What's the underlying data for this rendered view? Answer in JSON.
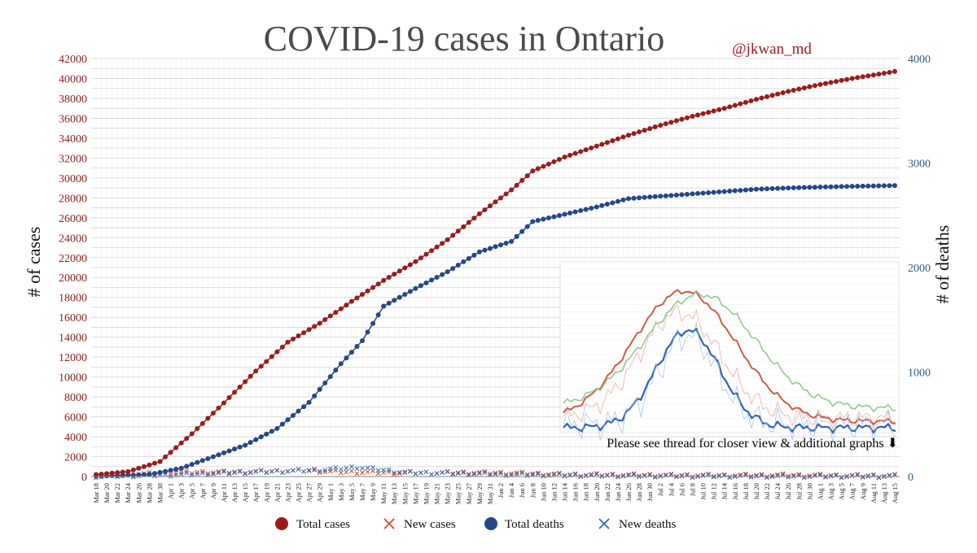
{
  "chart_data": {
    "type": "scatter",
    "title": "COVID-19 cases in Ontario",
    "annotation_handle": "@jkwan_md",
    "note": "Please see thread for closer view & additional graphs ⬇",
    "ylabel_left": "# of cases",
    "ylabel_right": "# of deaths",
    "ylim_left": [
      0,
      42000
    ],
    "ylim_right": [
      0,
      4000
    ],
    "yticks_left": [
      0,
      2000,
      4000,
      6000,
      8000,
      10000,
      12000,
      14000,
      16000,
      18000,
      20000,
      22000,
      24000,
      26000,
      28000,
      30000,
      32000,
      34000,
      36000,
      38000,
      40000,
      42000
    ],
    "yticks_right": [
      0,
      1000,
      2000,
      3000,
      4000
    ],
    "grid": true,
    "legend_position": "bottom",
    "x_start": "2020-03-18",
    "x_end": "2020-08-15",
    "x_tick_labels": [
      "Mar 18",
      "Mar 20",
      "Mar 22",
      "Mar 24",
      "Mar 26",
      "Mar 28",
      "Mar 30",
      "Apr 1",
      "Apr 3",
      "Apr 5",
      "Apr 7",
      "Apr 9",
      "Apr 11",
      "Apr 13",
      "Apr 15",
      "Apr 17",
      "Apr 19",
      "Apr 21",
      "Apr 23",
      "Apr 25",
      "Apr 27",
      "Apr 29",
      "May 1",
      "May 3",
      "May 5",
      "May 7",
      "May 9",
      "May 11",
      "May 13",
      "May 15",
      "May 17",
      "May 19",
      "May 21",
      "May 23",
      "May 25",
      "May 27",
      "May 29",
      "May 31",
      "Jun 2",
      "Jun 4",
      "Jun 6",
      "Jun 8",
      "Jun 10",
      "Jun 12",
      "Jun 14",
      "Jun 16",
      "Jun 18",
      "Jun 20",
      "Jun 22",
      "Jun 24",
      "Jun 26",
      "Jun 28",
      "Jun 30",
      "Jul 2",
      "Jul 4",
      "Jul 6",
      "Jul 8",
      "Jul 10",
      "Jul 12",
      "Jul 14",
      "Jul 16",
      "Jul 18",
      "Jul 20",
      "Jul 22",
      "Jul 24",
      "Jul 26",
      "Jul 28",
      "Jul 30",
      "Aug 1",
      "Aug 3",
      "Aug 5",
      "Aug 7",
      "Aug 9",
      "Aug 11",
      "Aug 13",
      "Aug 15"
    ],
    "series": [
      {
        "name": "Total cases",
        "axis": "left",
        "color": "#9b1b1b",
        "marker": "circle",
        "anchors": [
          [
            "2020-03-18",
            200
          ],
          [
            "2020-03-24",
            500
          ],
          [
            "2020-03-30",
            1500
          ],
          [
            "2020-04-05",
            4300
          ],
          [
            "2020-04-11",
            7400
          ],
          [
            "2020-04-17",
            10600
          ],
          [
            "2020-04-23",
            13500
          ],
          [
            "2020-04-29",
            15400
          ],
          [
            "2020-05-05",
            17600
          ],
          [
            "2020-05-11",
            19700
          ],
          [
            "2020-05-17",
            21600
          ],
          [
            "2020-05-23",
            23800
          ],
          [
            "2020-05-29",
            26400
          ],
          [
            "2020-06-04",
            28800
          ],
          [
            "2020-06-08",
            30700
          ],
          [
            "2020-06-14",
            32100
          ],
          [
            "2020-06-20",
            33200
          ],
          [
            "2020-06-26",
            34300
          ],
          [
            "2020-07-02",
            35300
          ],
          [
            "2020-07-08",
            36200
          ],
          [
            "2020-07-14",
            37000
          ],
          [
            "2020-07-20",
            37900
          ],
          [
            "2020-07-26",
            38700
          ],
          [
            "2020-08-01",
            39400
          ],
          [
            "2020-08-07",
            40000
          ],
          [
            "2020-08-15",
            40700
          ]
        ]
      },
      {
        "name": "New cases",
        "axis": "left",
        "color": "#d9452b",
        "marker": "x",
        "anchors": [
          [
            "2020-03-18",
            40
          ],
          [
            "2020-03-30",
            350
          ],
          [
            "2020-04-05",
            420
          ],
          [
            "2020-04-17",
            500
          ],
          [
            "2020-04-25",
            600
          ],
          [
            "2020-05-01",
            500
          ],
          [
            "2020-05-15",
            350
          ],
          [
            "2020-05-25",
            400
          ],
          [
            "2020-06-04",
            350
          ],
          [
            "2020-06-15",
            200
          ],
          [
            "2020-06-25",
            170
          ],
          [
            "2020-07-05",
            130
          ],
          [
            "2020-07-15",
            120
          ],
          [
            "2020-07-25",
            150
          ],
          [
            "2020-08-05",
            100
          ],
          [
            "2020-08-15",
            90
          ]
        ]
      },
      {
        "name": "Total deaths",
        "axis": "right",
        "color": "#24468a",
        "marker": "circle",
        "anchors": [
          [
            "2020-03-18",
            3
          ],
          [
            "2020-03-28",
            20
          ],
          [
            "2020-04-03",
            80
          ],
          [
            "2020-04-09",
            190
          ],
          [
            "2020-04-15",
            300
          ],
          [
            "2020-04-21",
            460
          ],
          [
            "2020-04-27",
            710
          ],
          [
            "2020-05-03",
            1080
          ],
          [
            "2020-05-07",
            1300
          ],
          [
            "2020-05-11",
            1630
          ],
          [
            "2020-05-17",
            1800
          ],
          [
            "2020-05-23",
            1960
          ],
          [
            "2020-05-29",
            2150
          ],
          [
            "2020-06-04",
            2250
          ],
          [
            "2020-06-08",
            2440
          ],
          [
            "2020-06-14",
            2510
          ],
          [
            "2020-06-20",
            2580
          ],
          [
            "2020-06-26",
            2660
          ],
          [
            "2020-07-04",
            2690
          ],
          [
            "2020-07-12",
            2720
          ],
          [
            "2020-07-20",
            2750
          ],
          [
            "2020-07-28",
            2765
          ],
          [
            "2020-08-05",
            2775
          ],
          [
            "2020-08-15",
            2785
          ]
        ]
      },
      {
        "name": "New deaths",
        "axis": "right",
        "color": "#2b6cb8",
        "marker": "x",
        "anchors": [
          [
            "2020-03-18",
            1
          ],
          [
            "2020-04-01",
            15
          ],
          [
            "2020-04-15",
            40
          ],
          [
            "2020-04-25",
            55
          ],
          [
            "2020-05-01",
            70
          ],
          [
            "2020-05-06",
            90
          ],
          [
            "2020-05-15",
            40
          ],
          [
            "2020-05-25",
            30
          ],
          [
            "2020-06-05",
            18
          ],
          [
            "2020-06-20",
            10
          ],
          [
            "2020-07-05",
            5
          ],
          [
            "2020-07-20",
            3
          ],
          [
            "2020-08-15",
            2
          ]
        ]
      }
    ]
  }
}
